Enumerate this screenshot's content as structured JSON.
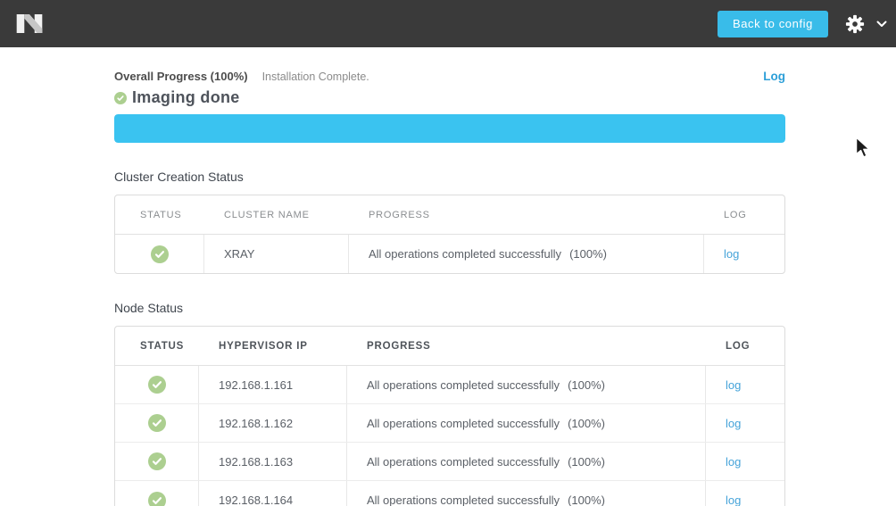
{
  "header": {
    "logo": "nutanix-logo",
    "back_button_label": "Back to config",
    "icons": [
      "gear-icon",
      "chevron-down-icon"
    ]
  },
  "overall": {
    "title": "Overall Progress (100%)",
    "subtitle": "Installation Complete.",
    "log_link_label": "Log",
    "stage_label": "Imaging done",
    "progress_percent": 100
  },
  "cluster_section": {
    "title": "Cluster Creation Status",
    "columns": [
      "STATUS",
      "CLUSTER NAME",
      "PROGRESS",
      "LOG"
    ],
    "rows": [
      {
        "status": "success",
        "cluster_name": "XRAY",
        "progress": "All operations completed successfully",
        "percent": "(100%)",
        "log_label": "log"
      }
    ]
  },
  "node_section": {
    "title": "Node Status",
    "columns": [
      "STATUS",
      "HYPERVISOR IP",
      "PROGRESS",
      "LOG"
    ],
    "rows": [
      {
        "status": "success",
        "hypervisor_ip": "192.168.1.161",
        "progress": "All operations completed successfully",
        "percent": "(100%)",
        "log_label": "log"
      },
      {
        "status": "success",
        "hypervisor_ip": "192.168.1.162",
        "progress": "All operations completed successfully",
        "percent": "(100%)",
        "log_label": "log"
      },
      {
        "status": "success",
        "hypervisor_ip": "192.168.1.163",
        "progress": "All operations completed successfully",
        "percent": "(100%)",
        "log_label": "log"
      },
      {
        "status": "success",
        "hypervisor_ip": "192.168.1.164",
        "progress": "All operations completed successfully",
        "percent": "(100%)",
        "log_label": "log"
      }
    ]
  },
  "colors": {
    "topbar_bg": "#3a3a3a",
    "button_cyan": "#39bce9",
    "progress_cyan": "#3ac3f0",
    "success_green": "#accf90",
    "link_blue": "#2d9fd8",
    "table_link_blue": "#45a3d9"
  }
}
